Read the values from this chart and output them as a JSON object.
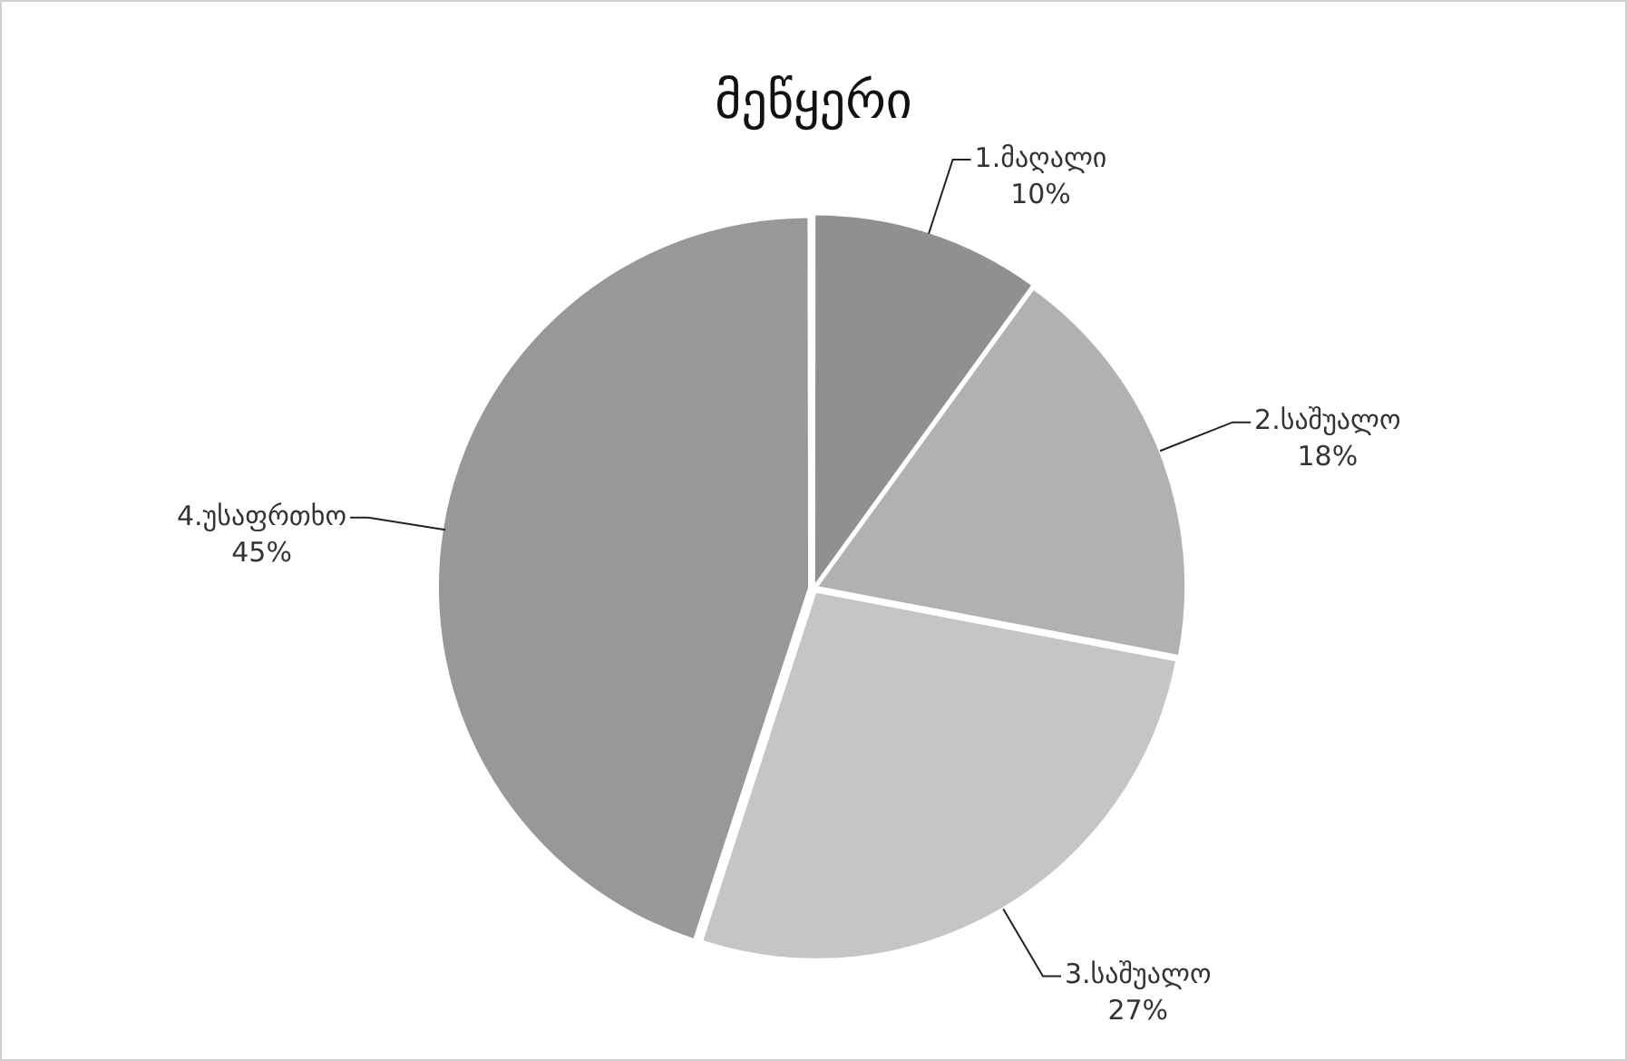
{
  "chart_data": {
    "type": "pie",
    "title": "მეწყერი",
    "categories": [
      "1.მაღალი",
      "2.საშუალო",
      "3.საშუალო",
      "4.უსაფრთხო"
    ],
    "values": [
      10,
      18,
      27,
      45
    ],
    "value_labels": [
      "10%",
      "18%",
      "27%",
      "45%"
    ],
    "colors": [
      "#8f9092",
      "#b0b1b3",
      "#c4c5c6",
      "#97989a"
    ],
    "legend": false
  }
}
